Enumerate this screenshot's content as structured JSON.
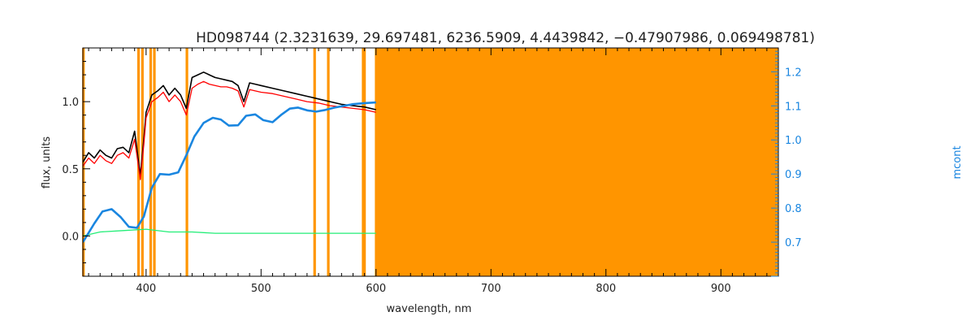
{
  "chart_data": {
    "type": "line",
    "title": "HD098744   (2.3231639, 29.697481, 6236.5909, 4.4439842, −0.47907986, 0.069498781)",
    "xlabel": "wavelength, nm",
    "ylabel": "flux, units",
    "y2label": "mcont",
    "xlim": [
      345,
      950
    ],
    "ylim": [
      -0.3,
      1.4
    ],
    "y2lim": [
      0.6,
      1.27
    ],
    "x_ticks": [
      400,
      500,
      600,
      700,
      800,
      900
    ],
    "y_ticks": [
      0.0,
      0.5,
      1.0
    ],
    "y2_ticks": [
      0.7,
      0.8,
      0.9,
      1.0,
      1.1,
      1.2
    ],
    "masked_region": [
      599,
      950
    ],
    "masked_lines": [
      345.5,
      393.4,
      396.8,
      404.0,
      407.2,
      435.5,
      546.6,
      558.5,
      588.8,
      590.0
    ],
    "colors": {
      "observed": "#000000",
      "model": "#ff0000",
      "residual": "#22ee77",
      "continuum": "#1a86e0",
      "mask": "#ff9500"
    },
    "series": [
      {
        "key": "observed",
        "x": [
          345,
          350,
          355,
          360,
          365,
          370,
          375,
          380,
          385,
          390,
          395,
          398,
          400,
          405,
          410,
          415,
          420,
          425,
          430,
          435,
          440,
          445,
          450,
          455,
          460,
          465,
          470,
          475,
          480,
          485,
          490,
          495,
          500,
          510,
          520,
          530,
          540,
          550,
          560,
          570,
          580,
          590,
          600
        ],
        "y": [
          0.55,
          0.62,
          0.58,
          0.64,
          0.6,
          0.58,
          0.65,
          0.66,
          0.62,
          0.78,
          0.45,
          0.72,
          0.92,
          1.05,
          1.08,
          1.12,
          1.05,
          1.1,
          1.05,
          0.95,
          1.18,
          1.2,
          1.22,
          1.2,
          1.18,
          1.17,
          1.16,
          1.15,
          1.12,
          1.0,
          1.14,
          1.13,
          1.12,
          1.1,
          1.08,
          1.06,
          1.04,
          1.02,
          1.0,
          0.98,
          0.97,
          0.96,
          0.94
        ]
      },
      {
        "key": "model",
        "x": [
          345,
          350,
          355,
          360,
          365,
          370,
          375,
          380,
          385,
          390,
          395,
          398,
          400,
          405,
          410,
          415,
          420,
          425,
          430,
          435,
          440,
          445,
          450,
          455,
          460,
          465,
          470,
          475,
          480,
          485,
          490,
          495,
          500,
          510,
          520,
          530,
          540,
          550,
          560,
          570,
          580,
          590,
          600
        ],
        "y": [
          0.52,
          0.58,
          0.54,
          0.6,
          0.56,
          0.54,
          0.6,
          0.62,
          0.58,
          0.72,
          0.42,
          0.68,
          0.88,
          1.0,
          1.03,
          1.07,
          1.0,
          1.05,
          1.0,
          0.9,
          1.1,
          1.13,
          1.15,
          1.13,
          1.12,
          1.11,
          1.11,
          1.1,
          1.08,
          0.96,
          1.09,
          1.08,
          1.07,
          1.06,
          1.04,
          1.02,
          1.0,
          0.99,
          0.97,
          0.96,
          0.95,
          0.94,
          0.92
        ]
      },
      {
        "key": "residual",
        "x": [
          345,
          360,
          380,
          400,
          420,
          440,
          460,
          480,
          500,
          520,
          540,
          560,
          580,
          600
        ],
        "y": [
          0.0,
          0.03,
          0.04,
          0.05,
          0.03,
          0.03,
          0.02,
          0.02,
          0.02,
          0.02,
          0.02,
          0.02,
          0.02,
          0.02
        ]
      },
      {
        "key": "continuum",
        "x": [
          345,
          355,
          362,
          370,
          378,
          385,
          392,
          398,
          405,
          412,
          420,
          428,
          435,
          442,
          450,
          458,
          465,
          472,
          480,
          487,
          495,
          502,
          510,
          518,
          525,
          532,
          540,
          548,
          556,
          564,
          572,
          580,
          590,
          600
        ],
        "y": [
          0.7,
          0.755,
          0.79,
          0.797,
          0.773,
          0.745,
          0.742,
          0.775,
          0.86,
          0.9,
          0.898,
          0.905,
          0.955,
          1.01,
          1.05,
          1.065,
          1.06,
          1.042,
          1.043,
          1.071,
          1.075,
          1.058,
          1.052,
          1.075,
          1.092,
          1.095,
          1.087,
          1.083,
          1.088,
          1.095,
          1.1,
          1.105,
          1.108,
          1.11
        ]
      }
    ]
  }
}
